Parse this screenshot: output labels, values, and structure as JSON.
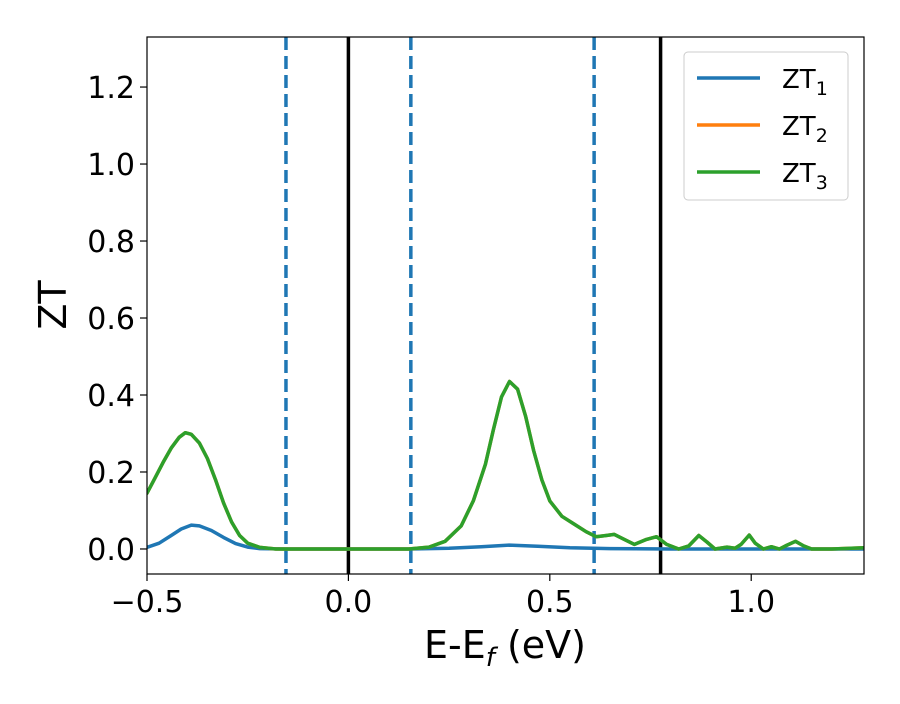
{
  "chart_data": {
    "type": "line",
    "title": "",
    "xlabel": "E-E",
    "xlabel_sub": "f",
    "xlabel_unit": " (eV)",
    "ylabel": "ZT",
    "xlim": [
      -0.5,
      1.28
    ],
    "ylim": [
      -0.065,
      1.33
    ],
    "x_ticks": [
      -0.5,
      0.0,
      0.5,
      1.0
    ],
    "x_tick_labels": [
      "−0.5",
      "0.0",
      "0.5",
      "1.0"
    ],
    "y_ticks": [
      0.0,
      0.2,
      0.4,
      0.6,
      0.8,
      1.0,
      1.2
    ],
    "y_tick_labels": [
      "0.0",
      "0.2",
      "0.4",
      "0.6",
      "0.8",
      "1.0",
      "1.2"
    ],
    "grid": false,
    "legend_position": "top-right",
    "vlines": [
      {
        "x": -0.155,
        "style": "dashed",
        "color": "#1f77b4"
      },
      {
        "x": 0.0,
        "style": "solid",
        "color": "#000000"
      },
      {
        "x": 0.155,
        "style": "dashed",
        "color": "#1f77b4"
      },
      {
        "x": 0.61,
        "style": "dashed",
        "color": "#1f77b4"
      },
      {
        "x": 0.775,
        "style": "solid",
        "color": "#000000"
      }
    ],
    "series": [
      {
        "name": "ZT",
        "name_sub": "1",
        "color": "#1f77b4",
        "points": [
          [
            -0.5,
            0.004
          ],
          [
            -0.47,
            0.015
          ],
          [
            -0.44,
            0.035
          ],
          [
            -0.415,
            0.052
          ],
          [
            -0.39,
            0.062
          ],
          [
            -0.37,
            0.06
          ],
          [
            -0.34,
            0.048
          ],
          [
            -0.31,
            0.03
          ],
          [
            -0.28,
            0.014
          ],
          [
            -0.25,
            0.005
          ],
          [
            -0.22,
            0.001
          ],
          [
            -0.15,
            0.0
          ],
          [
            0.0,
            0.0
          ],
          [
            0.15,
            0.0
          ],
          [
            0.25,
            0.002
          ],
          [
            0.33,
            0.006
          ],
          [
            0.4,
            0.01
          ],
          [
            0.47,
            0.007
          ],
          [
            0.55,
            0.003
          ],
          [
            0.65,
            0.001
          ],
          [
            0.8,
            0.0
          ],
          [
            1.0,
            0.0
          ],
          [
            1.28,
            0.0
          ]
        ]
      },
      {
        "name": "ZT",
        "name_sub": "2",
        "color": "#ff7f0e",
        "points": [
          [
            -0.5,
            0.145
          ],
          [
            -0.48,
            0.185
          ],
          [
            -0.46,
            0.225
          ],
          [
            -0.44,
            0.262
          ],
          [
            -0.42,
            0.29
          ],
          [
            -0.405,
            0.302
          ],
          [
            -0.39,
            0.298
          ],
          [
            -0.37,
            0.275
          ],
          [
            -0.35,
            0.235
          ],
          [
            -0.33,
            0.18
          ],
          [
            -0.31,
            0.12
          ],
          [
            -0.29,
            0.07
          ],
          [
            -0.27,
            0.035
          ],
          [
            -0.25,
            0.015
          ],
          [
            -0.22,
            0.004
          ],
          [
            -0.18,
            0.0
          ],
          [
            0.0,
            0.0
          ],
          [
            0.15,
            0.0
          ],
          [
            0.2,
            0.005
          ],
          [
            0.24,
            0.02
          ],
          [
            0.28,
            0.06
          ],
          [
            0.31,
            0.125
          ],
          [
            0.34,
            0.22
          ],
          [
            0.36,
            0.31
          ],
          [
            0.38,
            0.395
          ],
          [
            0.4,
            0.435
          ],
          [
            0.42,
            0.415
          ],
          [
            0.44,
            0.345
          ],
          [
            0.46,
            0.255
          ],
          [
            0.48,
            0.18
          ],
          [
            0.5,
            0.125
          ],
          [
            0.53,
            0.085
          ],
          [
            0.56,
            0.065
          ],
          [
            0.59,
            0.045
          ],
          [
            0.615,
            0.032
          ],
          [
            0.64,
            0.035
          ],
          [
            0.66,
            0.038
          ],
          [
            0.685,
            0.025
          ],
          [
            0.71,
            0.012
          ],
          [
            0.74,
            0.025
          ],
          [
            0.765,
            0.032
          ],
          [
            0.79,
            0.012
          ],
          [
            0.82,
            0.0
          ],
          [
            0.845,
            0.008
          ],
          [
            0.87,
            0.035
          ],
          [
            0.89,
            0.018
          ],
          [
            0.91,
            0.0
          ],
          [
            0.94,
            0.005
          ],
          [
            0.96,
            0.002
          ],
          [
            0.975,
            0.012
          ],
          [
            0.995,
            0.036
          ],
          [
            1.01,
            0.015
          ],
          [
            1.03,
            0.0
          ],
          [
            1.05,
            0.006
          ],
          [
            1.07,
            0.0
          ],
          [
            1.085,
            0.008
          ],
          [
            1.11,
            0.02
          ],
          [
            1.13,
            0.008
          ],
          [
            1.15,
            0.0
          ],
          [
            1.2,
            0.0
          ],
          [
            1.28,
            0.003
          ]
        ]
      },
      {
        "name": "ZT",
        "name_sub": "3",
        "color": "#2ca02c",
        "points": [
          [
            -0.5,
            0.145
          ],
          [
            -0.48,
            0.185
          ],
          [
            -0.46,
            0.225
          ],
          [
            -0.44,
            0.262
          ],
          [
            -0.42,
            0.29
          ],
          [
            -0.405,
            0.302
          ],
          [
            -0.39,
            0.298
          ],
          [
            -0.37,
            0.275
          ],
          [
            -0.35,
            0.235
          ],
          [
            -0.33,
            0.18
          ],
          [
            -0.31,
            0.12
          ],
          [
            -0.29,
            0.07
          ],
          [
            -0.27,
            0.035
          ],
          [
            -0.25,
            0.015
          ],
          [
            -0.22,
            0.004
          ],
          [
            -0.18,
            0.0
          ],
          [
            0.0,
            0.0
          ],
          [
            0.15,
            0.0
          ],
          [
            0.2,
            0.005
          ],
          [
            0.24,
            0.02
          ],
          [
            0.28,
            0.06
          ],
          [
            0.31,
            0.125
          ],
          [
            0.34,
            0.22
          ],
          [
            0.36,
            0.31
          ],
          [
            0.38,
            0.395
          ],
          [
            0.4,
            0.435
          ],
          [
            0.42,
            0.415
          ],
          [
            0.44,
            0.345
          ],
          [
            0.46,
            0.255
          ],
          [
            0.48,
            0.18
          ],
          [
            0.5,
            0.125
          ],
          [
            0.53,
            0.085
          ],
          [
            0.56,
            0.065
          ],
          [
            0.59,
            0.045
          ],
          [
            0.615,
            0.032
          ],
          [
            0.64,
            0.035
          ],
          [
            0.66,
            0.038
          ],
          [
            0.685,
            0.025
          ],
          [
            0.71,
            0.012
          ],
          [
            0.74,
            0.025
          ],
          [
            0.765,
            0.032
          ],
          [
            0.79,
            0.012
          ],
          [
            0.82,
            0.0
          ],
          [
            0.845,
            0.008
          ],
          [
            0.87,
            0.035
          ],
          [
            0.89,
            0.018
          ],
          [
            0.91,
            0.0
          ],
          [
            0.94,
            0.005
          ],
          [
            0.96,
            0.002
          ],
          [
            0.975,
            0.012
          ],
          [
            0.995,
            0.036
          ],
          [
            1.01,
            0.015
          ],
          [
            1.03,
            0.0
          ],
          [
            1.05,
            0.006
          ],
          [
            1.07,
            0.0
          ],
          [
            1.085,
            0.008
          ],
          [
            1.11,
            0.02
          ],
          [
            1.13,
            0.008
          ],
          [
            1.15,
            0.0
          ],
          [
            1.2,
            0.0
          ],
          [
            1.28,
            0.003
          ]
        ]
      }
    ]
  }
}
